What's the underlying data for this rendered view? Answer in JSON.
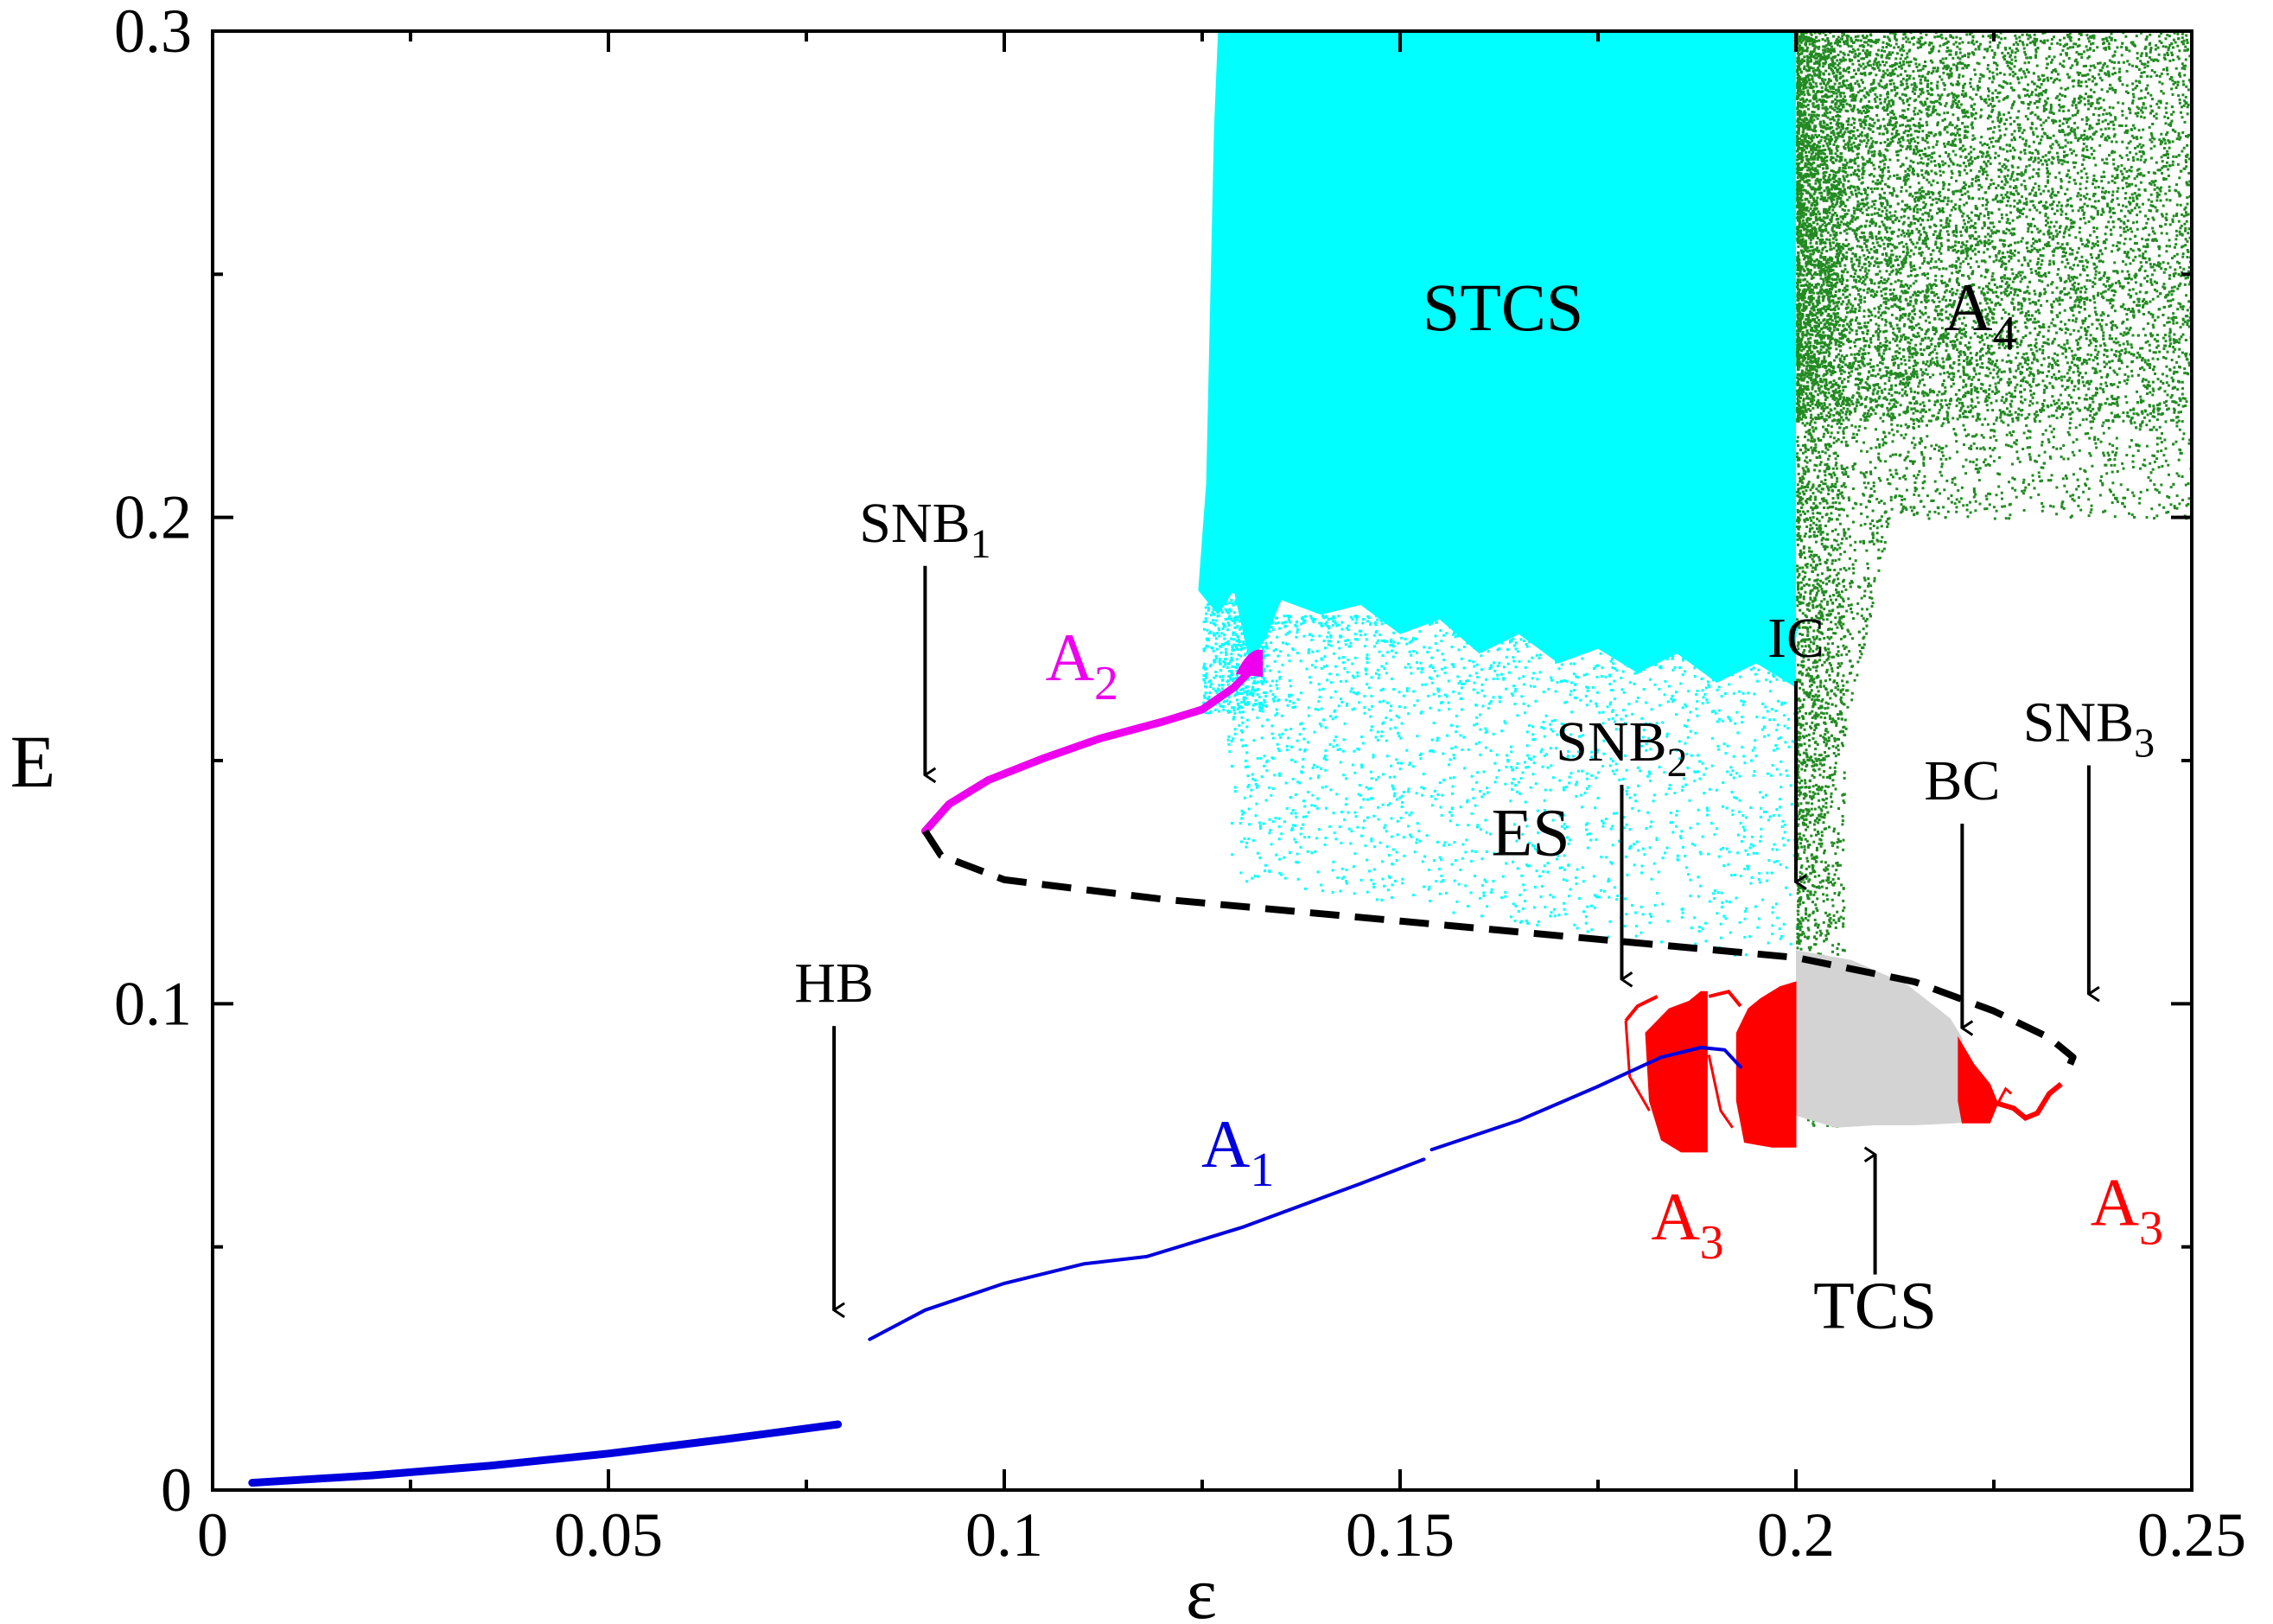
{
  "chart_data": {
    "type": "scatter",
    "title": "",
    "xlabel": "ε",
    "ylabel": "E",
    "xlim": [
      0,
      0.25
    ],
    "ylim": [
      0,
      0.3
    ],
    "x_ticks": [
      0,
      0.05,
      0.1,
      0.15,
      0.2,
      0.25
    ],
    "x_tick_labels": [
      "0",
      "0.05",
      "0.1",
      "0.15",
      "0.2",
      "0.25"
    ],
    "y_ticks": [
      0,
      0.1,
      0.2,
      0.3
    ],
    "y_tick_labels": [
      "0",
      "0.1",
      "0.2",
      "0.3"
    ],
    "x_minor_ticks": [
      0.025,
      0.075,
      0.125,
      0.175,
      0.225
    ],
    "y_minor_ticks": [
      0.05,
      0.15,
      0.25
    ],
    "colors": {
      "axis": "#000000",
      "A1": "#0000dd",
      "A2": "#ee00ee",
      "A3": "#ff0000",
      "A4": "#228b22",
      "STCS": "#00ffff",
      "TCS": "#d3d3d3",
      "ES": "#000000"
    },
    "series": [
      {
        "name": "A1",
        "style": "thick-line",
        "x": [
          0.005,
          0.02,
          0.035,
          0.05,
          0.065,
          0.079
        ],
        "y": [
          0.0015,
          0.003,
          0.005,
          0.0075,
          0.0105,
          0.0135
        ]
      },
      {
        "name": "A1",
        "style": "line",
        "x": [
          0.083,
          0.09,
          0.1,
          0.11,
          0.118,
          0.13,
          0.145,
          0.153
        ],
        "y": [
          0.031,
          0.037,
          0.0425,
          0.0465,
          0.048,
          0.054,
          0.063,
          0.068
        ]
      },
      {
        "name": "A1",
        "style": "line",
        "x": [
          0.154,
          0.165,
          0.175,
          0.183,
          0.188,
          0.191,
          0.193
        ],
        "y": [
          0.07,
          0.076,
          0.083,
          0.089,
          0.091,
          0.0905,
          0.087
        ]
      },
      {
        "name": "A2",
        "style": "thick-line",
        "x": [
          0.09,
          0.093,
          0.098,
          0.105,
          0.112,
          0.12,
          0.125,
          0.129,
          0.132
        ],
        "y": [
          0.1355,
          0.141,
          0.146,
          0.1505,
          0.1545,
          0.158,
          0.1605,
          0.165,
          0.17
        ]
      },
      {
        "name": "ES",
        "style": "dashed",
        "x": [
          0.09,
          0.092,
          0.1,
          0.12,
          0.14,
          0.16,
          0.18,
          0.2,
          0.215,
          0.225,
          0.232,
          0.235,
          0.234
        ],
        "y": [
          0.1355,
          0.1305,
          0.1255,
          0.1215,
          0.1185,
          0.1155,
          0.1125,
          0.1095,
          0.1045,
          0.0985,
          0.093,
          0.089,
          0.085
        ]
      }
    ],
    "regions": [
      {
        "name": "STCS",
        "description": "spatiotemporal chaotic state, dense scatter",
        "x_range": [
          0.124,
          0.2
        ],
        "y_range": [
          0.11,
          0.3
        ]
      },
      {
        "name": "A4",
        "description": "green scatter",
        "x_range": [
          0.2,
          0.25
        ],
        "y_range": [
          0.11,
          0.3
        ]
      },
      {
        "name": "A3",
        "description": "red attractor bands",
        "x_range": [
          0.178,
          0.2
        ],
        "y_range": [
          0.075,
          0.11
        ]
      },
      {
        "name": "TCS",
        "description": "grey filled region",
        "x_range": [
          0.2,
          0.221
        ],
        "y_range": [
          0.075,
          0.11
        ]
      },
      {
        "name": "A3",
        "description": "red attractor bands",
        "x_range": [
          0.221,
          0.235
        ],
        "y_range": [
          0.075,
          0.095
        ]
      }
    ],
    "annotations": [
      {
        "id": "hb",
        "text": "HB",
        "sub": "",
        "color": "#000000",
        "x": 0.0785,
        "y": 0.1004,
        "arrow": "down",
        "arrow_to": 0.037
      },
      {
        "id": "snb1",
        "text": "SNB",
        "sub": "1",
        "color": "#000000",
        "x": 0.09,
        "y": 0.195,
        "arrow": "down",
        "arrow_to": 0.147
      },
      {
        "id": "snb2",
        "text": "SNB",
        "sub": "2",
        "color": "#000000",
        "x": 0.178,
        "y": 0.15,
        "arrow": "down",
        "arrow_to": 0.105
      },
      {
        "id": "ic",
        "text": "IC",
        "sub": "",
        "color": "#000000",
        "x": 0.2,
        "y": 0.1713,
        "arrow": "down",
        "arrow_to": 0.125
      },
      {
        "id": "bc",
        "text": "BC",
        "sub": "",
        "color": "#000000",
        "x": 0.221,
        "y": 0.142,
        "arrow": "down",
        "arrow_to": 0.095
      },
      {
        "id": "snb3",
        "text": "SNB",
        "sub": "3",
        "color": "#000000",
        "x": 0.237,
        "y": 0.154,
        "arrow": "down",
        "arrow_to": 0.102
      },
      {
        "id": "tcs",
        "text": "TCS",
        "sub": "",
        "color": "#000000",
        "x": 0.21,
        "y": 0.0333,
        "arrow": "up",
        "arrow_to": 0.069
      },
      {
        "id": "es",
        "text": "ES",
        "sub": "",
        "color": "#000000",
        "x": 0.1665,
        "y": 0.1305,
        "arrow": "",
        "arrow_to": 0
      },
      {
        "id": "stcs",
        "text": "STCS",
        "sub": "",
        "color": "#000000",
        "x": 0.163,
        "y": 0.2385,
        "arrow": "",
        "arrow_to": 0
      },
      {
        "id": "a4",
        "text": "A",
        "sub": "4",
        "color": "#000000",
        "x": 0.2233,
        "y": 0.2385,
        "arrow": "",
        "arrow_to": 0
      },
      {
        "id": "a2",
        "text": "A",
        "sub": "2",
        "color": "#ee00ee",
        "x": 0.1098,
        "y": 0.1665,
        "arrow": "",
        "arrow_to": 0
      },
      {
        "id": "a1",
        "text": "A",
        "sub": "1",
        "color": "#0000dd",
        "x": 0.1295,
        "y": 0.0665,
        "arrow": "",
        "arrow_to": 0
      },
      {
        "id": "a3l",
        "text": "A",
        "sub": "3",
        "color": "#ff0000",
        "x": 0.1863,
        "y": 0.0515,
        "arrow": "",
        "arrow_to": 0
      },
      {
        "id": "a3r",
        "text": "A",
        "sub": "3",
        "color": "#ff0000",
        "x": 0.2418,
        "y": 0.0545,
        "arrow": "",
        "arrow_to": 0
      }
    ]
  }
}
